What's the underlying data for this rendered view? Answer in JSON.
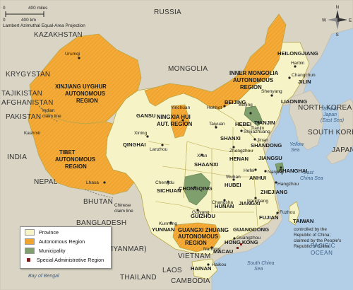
{
  "map": {
    "scale": {
      "top": "400 miles",
      "bottom": "400 km",
      "zero": "0"
    },
    "projection": "Lambert Azimuthal Equal-Area Projection",
    "compass": {
      "n": "N",
      "s": "S",
      "e": "E",
      "w": "W"
    },
    "colors": {
      "water": "#b3cfe7",
      "foreign": "#d9d4c4",
      "province": "#f6f3c6",
      "autonomous": "#f2a52e",
      "municipality": "#7f9f6c",
      "sar": "#7a1c1c",
      "border": "#b8a64c"
    },
    "countries": [
      "RUSSIA",
      "KAZAKHSTAN",
      "MONGOLIA",
      "KRYGYSTAN",
      "TAJIKISTAN",
      "AFGHANISTAN",
      "PAKISTAN",
      "INDIA",
      "NEPAL",
      "BHUTAN",
      "BANGLADESH",
      "BURMA (MYANMAR)",
      "LAOS",
      "VIETNAM",
      "THAILAND",
      "CAMBODIA",
      "NORTH KOREA",
      "SOUTH KOREA",
      "JAPAN"
    ],
    "provinces": [
      "HEILONGJIANG",
      "JILIN",
      "LIAONING",
      "HEBEI",
      "SHANXI",
      "SHANDONG",
      "HENAN",
      "JIANGSU",
      "ANHUI",
      "HUBEI",
      "ZHEJIANG",
      "JIANGXI",
      "FUJIAN",
      "HUNAN",
      "GUANGDONG",
      "GUIZHOU",
      "YUNNAN",
      "SICHUAN",
      "SHAANXI",
      "QINGHAI",
      "GANSU",
      "HAINAN",
      "TAIWAN"
    ],
    "autonomous_regions": [
      "XINJIANG UYGHUR AUTONOMOUS REGION",
      "TIBET AUTONOMOUS REGION",
      "INNER MONGOLIA AUTONOMOUS REGION",
      "NINGXIA HUI AUT. REGION",
      "GUANGXI ZHUANG AUTONOMOUS REGION"
    ],
    "municipalities": [
      "BEIJING",
      "TIANJIN",
      "SHANGHAI",
      "CHONGQING"
    ],
    "sars": [
      "HONG KONG",
      "MACAU"
    ],
    "cities": [
      "Urumqi",
      "Harbin",
      "Changchun",
      "Shenyang",
      "Hohhot",
      "Beijing",
      "Tianjin",
      "Shijiazhuang",
      "Taiyuan",
      "Jinan",
      "Yinchuan",
      "Xining",
      "Lanzhou",
      "Xi'an",
      "Zhengzhou",
      "Nanjing",
      "Hefei",
      "Shanghai",
      "Hangzhou",
      "Wuhan",
      "Nanchang",
      "Changsha",
      "Fuzhou",
      "Chengdu",
      "Chongqing",
      "Guiyang",
      "Kunming",
      "Nanning",
      "Guangzhou",
      "Haikou",
      "Lhasa"
    ],
    "seas": [
      "Sea of Japan (East Sea)",
      "Yellow Sea",
      "East China Sea",
      "South China Sea",
      "Bay of Bengal",
      "PACIFIC OCEAN"
    ],
    "labels": {
      "kashmir": "Kashmir",
      "indian_claim": "Indian claim line",
      "chinese_claim": "Chinese claim line",
      "taiwan_note": "controlled by the Republic of China; claimed by the People's Republic of China."
    }
  },
  "legend": {
    "items": [
      {
        "label": "Province"
      },
      {
        "label": "Autonomous Region"
      },
      {
        "label": "Municipality"
      },
      {
        "label": "Special Administrative Region"
      }
    ]
  }
}
